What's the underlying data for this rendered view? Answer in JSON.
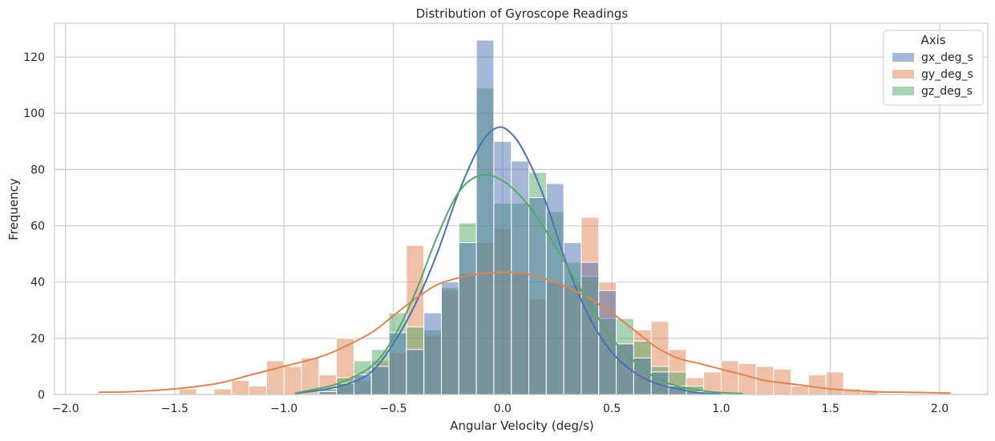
{
  "chart_data": {
    "type": "bar",
    "subtype": "histogram-with-kde",
    "title": "Distribution of Gyroscope Readings",
    "xlabel": "Angular Velocity (deg/s)",
    "ylabel": "Frequency",
    "xlim": [
      -2.05,
      2.22
    ],
    "ylim": [
      0,
      132
    ],
    "xticks": [
      -2.0,
      -1.5,
      -1.0,
      -0.5,
      0.0,
      0.5,
      1.0,
      1.5,
      2.0
    ],
    "xtick_labels": [
      "−2.0",
      "−1.5",
      "−1.0",
      "−0.5",
      "0.0",
      "0.5",
      "1.0",
      "1.5",
      "2.0"
    ],
    "yticks": [
      0,
      20,
      40,
      60,
      80,
      100,
      120
    ],
    "ytick_labels": [
      "0",
      "20",
      "40",
      "60",
      "80",
      "100",
      "120"
    ],
    "grid": true,
    "legend": {
      "title": "Axis",
      "placement": "top-right"
    },
    "bin_width": 0.08,
    "overlap_color": "#8a8a94",
    "series": [
      {
        "name": "gx_deg_s",
        "color": "#4c72b0",
        "bin_start": -0.84,
        "counts": [
          1,
          4,
          7,
          10,
          22,
          16,
          29,
          40,
          54,
          126,
          90,
          83,
          70,
          75,
          54,
          47,
          37,
          18,
          13,
          8,
          3,
          1
        ],
        "kde": [
          [
            -0.95,
            0.3
          ],
          [
            -0.8,
            2
          ],
          [
            -0.7,
            4
          ],
          [
            -0.6,
            8
          ],
          [
            -0.5,
            18
          ],
          [
            -0.4,
            32
          ],
          [
            -0.3,
            50
          ],
          [
            -0.2,
            72
          ],
          [
            -0.1,
            89
          ],
          [
            -0.02,
            95
          ],
          [
            0.05,
            92
          ],
          [
            0.12,
            83
          ],
          [
            0.2,
            68
          ],
          [
            0.3,
            45
          ],
          [
            0.4,
            27
          ],
          [
            0.5,
            15
          ],
          [
            0.6,
            8
          ],
          [
            0.7,
            4
          ],
          [
            0.8,
            2
          ],
          [
            0.9,
            0.6
          ],
          [
            1.0,
            0.2
          ]
        ]
      },
      {
        "name": "gy_deg_s",
        "color": "#dd8452",
        "bin_start": -1.48,
        "counts": [
          2,
          0,
          2,
          5,
          3,
          12,
          10,
          13,
          7,
          20,
          5,
          12,
          15,
          53,
          21,
          37,
          43,
          54,
          59,
          43,
          34,
          40,
          39,
          63,
          40,
          18,
          23,
          26,
          16,
          6,
          8,
          12,
          11,
          10,
          9,
          3,
          7,
          8,
          2,
          1
        ],
        "kde": [
          [
            -1.85,
            0.8
          ],
          [
            -1.7,
            1
          ],
          [
            -1.5,
            2
          ],
          [
            -1.3,
            4
          ],
          [
            -1.15,
            7
          ],
          [
            -1.0,
            10
          ],
          [
            -0.85,
            13
          ],
          [
            -0.75,
            16
          ],
          [
            -0.6,
            22
          ],
          [
            -0.5,
            28
          ],
          [
            -0.4,
            34
          ],
          [
            -0.3,
            39
          ],
          [
            -0.2,
            41.5
          ],
          [
            -0.1,
            43
          ],
          [
            0.0,
            43.5
          ],
          [
            0.1,
            43
          ],
          [
            0.2,
            41
          ],
          [
            0.3,
            38
          ],
          [
            0.4,
            34
          ],
          [
            0.5,
            29
          ],
          [
            0.6,
            23
          ],
          [
            0.7,
            17
          ],
          [
            0.8,
            13
          ],
          [
            0.9,
            11
          ],
          [
            1.0,
            9
          ],
          [
            1.1,
            7
          ],
          [
            1.2,
            5
          ],
          [
            1.3,
            4
          ],
          [
            1.4,
            3
          ],
          [
            1.5,
            2
          ],
          [
            1.7,
            1
          ],
          [
            1.85,
            0.8
          ],
          [
            2.05,
            0.5
          ]
        ]
      },
      {
        "name": "gz_deg_s",
        "color": "#55a868",
        "bin_start": -0.84,
        "counts": [
          2,
          6,
          12,
          16,
          29,
          24,
          23,
          38,
          61,
          109,
          68,
          68,
          79,
          65,
          47,
          42,
          27,
          27,
          19,
          10,
          8,
          3
        ],
        "kde": [
          [
            -0.95,
            0.5
          ],
          [
            -0.85,
            2
          ],
          [
            -0.75,
            4
          ],
          [
            -0.6,
            10
          ],
          [
            -0.5,
            20
          ],
          [
            -0.4,
            36
          ],
          [
            -0.3,
            56
          ],
          [
            -0.2,
            72
          ],
          [
            -0.1,
            78
          ],
          [
            0.0,
            76
          ],
          [
            0.1,
            69
          ],
          [
            0.2,
            58
          ],
          [
            0.3,
            45
          ],
          [
            0.4,
            32
          ],
          [
            0.5,
            20
          ],
          [
            0.6,
            12
          ],
          [
            0.7,
            6
          ],
          [
            0.8,
            3
          ],
          [
            0.95,
            1
          ],
          [
            1.1,
            0.3
          ]
        ]
      }
    ]
  }
}
